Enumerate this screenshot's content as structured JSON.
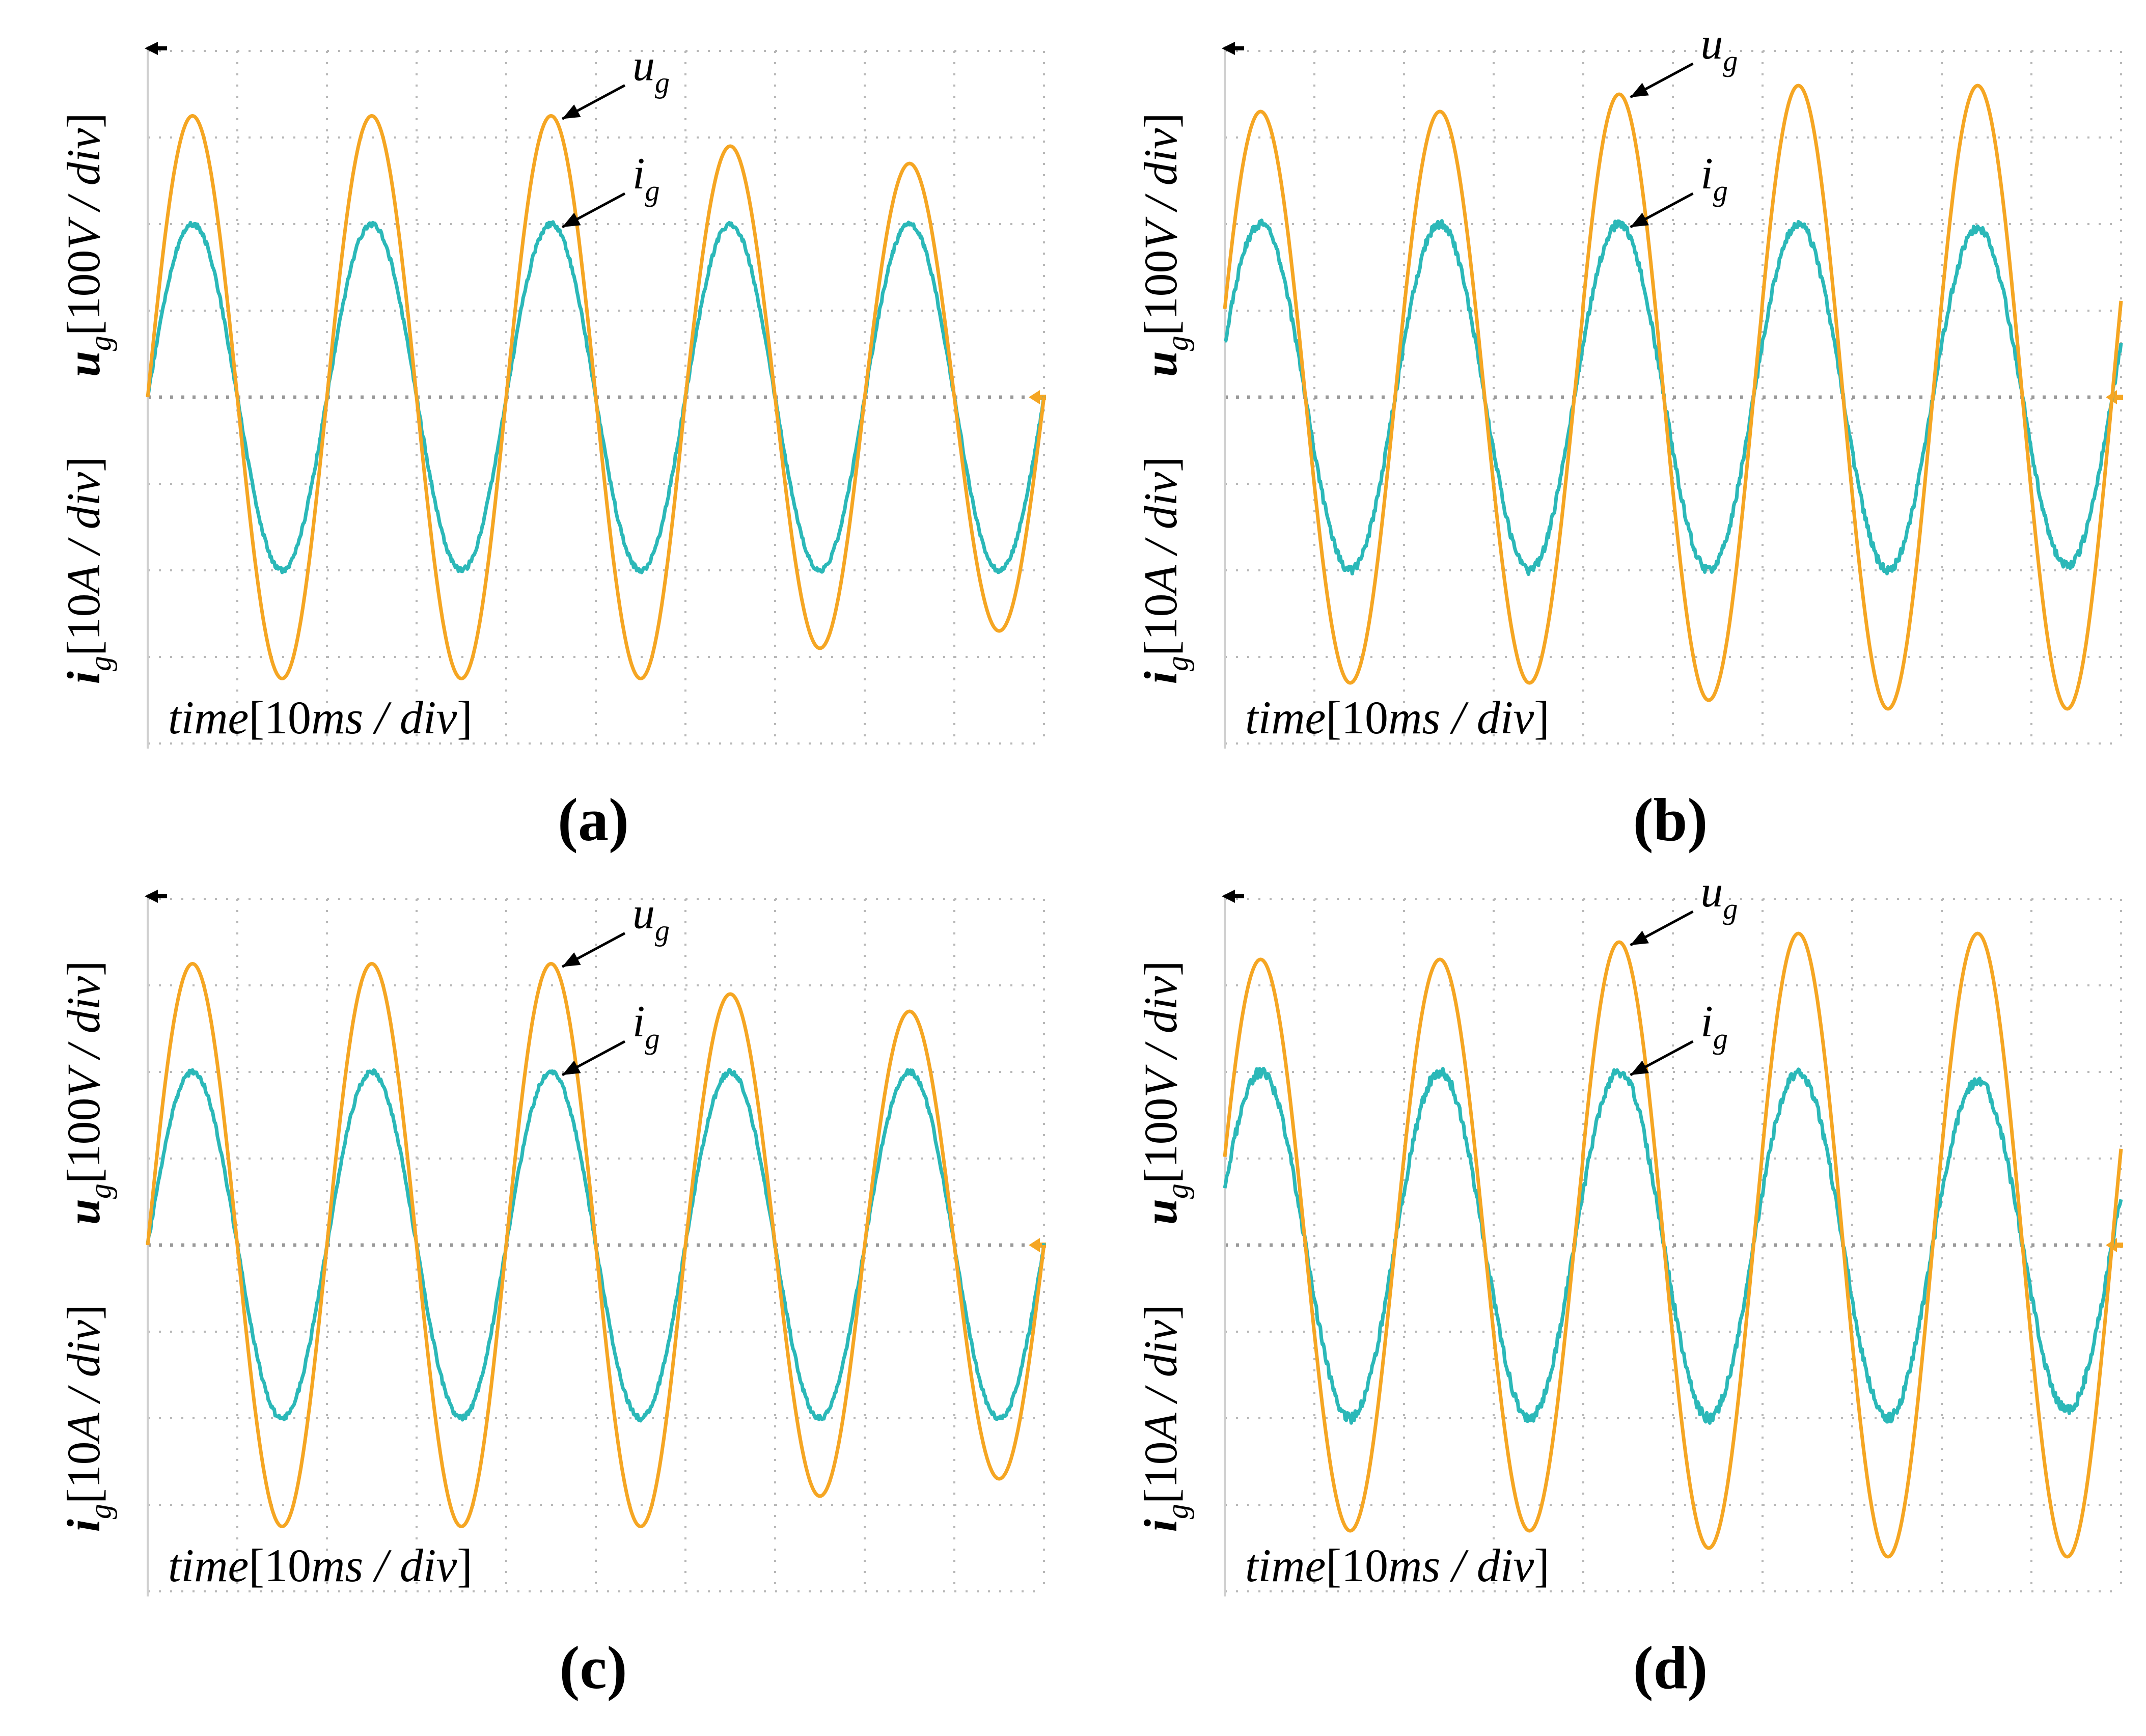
{
  "figure": {
    "panels": [
      {
        "caption": "(a)",
        "ylabel_voltage": "u_g[100V / div]",
        "ylabel_current": "i_g[10A / div]",
        "xlabel": "time[10ms / div]",
        "annotations": {
          "voltage": "u_g",
          "current": "i_g"
        }
      },
      {
        "caption": "(b)",
        "ylabel_voltage": "u_g[100V / div]",
        "ylabel_current": "i_g[10A / div]",
        "xlabel": "time[10ms / div]",
        "annotations": {
          "voltage": "u_g",
          "current": "i_g"
        }
      },
      {
        "caption": "(c)",
        "ylabel_voltage": "u_g[100V / div]",
        "ylabel_current": "i_g[10A / div]",
        "xlabel": "time[10ms / div]",
        "annotations": {
          "voltage": "u_g",
          "current": "i_g"
        }
      },
      {
        "caption": "(d)",
        "ylabel_voltage": "u_g[100V / div]",
        "ylabel_current": "i_g[10A / div]",
        "xlabel": "time[10ms / div]",
        "annotations": {
          "voltage": "u_g",
          "current": "i_g"
        }
      }
    ]
  },
  "colors": {
    "voltage": "#F5A623",
    "current": "#2BB8B8",
    "grid": "#B8B8B8",
    "text": "#000000"
  },
  "chart_data": [
    {
      "type": "line",
      "title": "(a)",
      "xlabel": "time [10ms/div]",
      "ylabel": "u_g [100V/div], i_g [10A/div]",
      "xlim": [
        0,
        100
      ],
      "ylim": [
        -4,
        4
      ],
      "x_unit": "ms",
      "y_unit": "div",
      "grid": true,
      "series": [
        {
          "name": "u_g",
          "kind": "sine",
          "frequency_hz": 50,
          "phase_deg": 0,
          "amplitude_div": [
            3.25,
            3.25,
            3.25,
            2.9,
            2.7
          ],
          "offset_div": 0,
          "noise_div": 0.0
        },
        {
          "name": "i_g",
          "kind": "sine",
          "frequency_hz": 50,
          "phase_deg": 0,
          "amplitude_div": [
            2.0,
            2.0,
            2.0,
            2.0,
            2.0
          ],
          "offset_div": 0,
          "noise_div": 0.03
        }
      ]
    },
    {
      "type": "line",
      "title": "(b)",
      "xlabel": "time [10ms/div]",
      "ylabel": "u_g [100V/div], i_g [10A/div]",
      "xlim": [
        0,
        100
      ],
      "ylim": [
        -4,
        4
      ],
      "x_unit": "ms",
      "y_unit": "div",
      "grid": true,
      "series": [
        {
          "name": "u_g",
          "kind": "sine",
          "frequency_hz": 50,
          "phase_deg": 18,
          "amplitude_div": [
            3.3,
            3.3,
            3.5,
            3.6,
            3.6
          ],
          "offset_div": 0,
          "noise_div": 0.0
        },
        {
          "name": "i_g",
          "kind": "sine",
          "frequency_hz": 50,
          "phase_deg": 18,
          "amplitude_div": [
            2.0,
            2.0,
            2.0,
            2.0,
            1.95
          ],
          "offset_div": 0,
          "noise_div": 0.05
        }
      ]
    },
    {
      "type": "line",
      "title": "(c)",
      "xlabel": "time [10ms/div]",
      "ylabel": "u_g [100V/div], i_g [10A/div]",
      "xlim": [
        0,
        100
      ],
      "ylim": [
        -4,
        4
      ],
      "x_unit": "ms",
      "y_unit": "div",
      "grid": true,
      "series": [
        {
          "name": "u_g",
          "kind": "sine",
          "frequency_hz": 50,
          "phase_deg": 0,
          "amplitude_div": [
            3.25,
            3.25,
            3.25,
            2.9,
            2.7
          ],
          "offset_div": 0,
          "noise_div": 0.0
        },
        {
          "name": "i_g",
          "kind": "sine",
          "frequency_hz": 50,
          "phase_deg": 0,
          "amplitude_div": [
            2.0,
            2.0,
            2.0,
            2.0,
            2.0
          ],
          "offset_div": 0,
          "noise_div": 0.03
        }
      ]
    },
    {
      "type": "line",
      "title": "(d)",
      "xlabel": "time [10ms/div]",
      "ylabel": "u_g [100V/div], i_g [10A/div]",
      "xlim": [
        0,
        100
      ],
      "ylim": [
        -4,
        4
      ],
      "x_unit": "ms",
      "y_unit": "div",
      "grid": true,
      "series": [
        {
          "name": "u_g",
          "kind": "sine",
          "frequency_hz": 50,
          "phase_deg": 18,
          "amplitude_div": [
            3.3,
            3.3,
            3.5,
            3.6,
            3.6
          ],
          "offset_div": 0,
          "noise_div": 0.0
        },
        {
          "name": "i_g",
          "kind": "sine",
          "frequency_hz": 50,
          "phase_deg": 18,
          "amplitude_div": [
            2.0,
            2.0,
            2.0,
            2.0,
            1.9
          ],
          "offset_div": 0,
          "noise_div": 0.06
        }
      ]
    }
  ]
}
